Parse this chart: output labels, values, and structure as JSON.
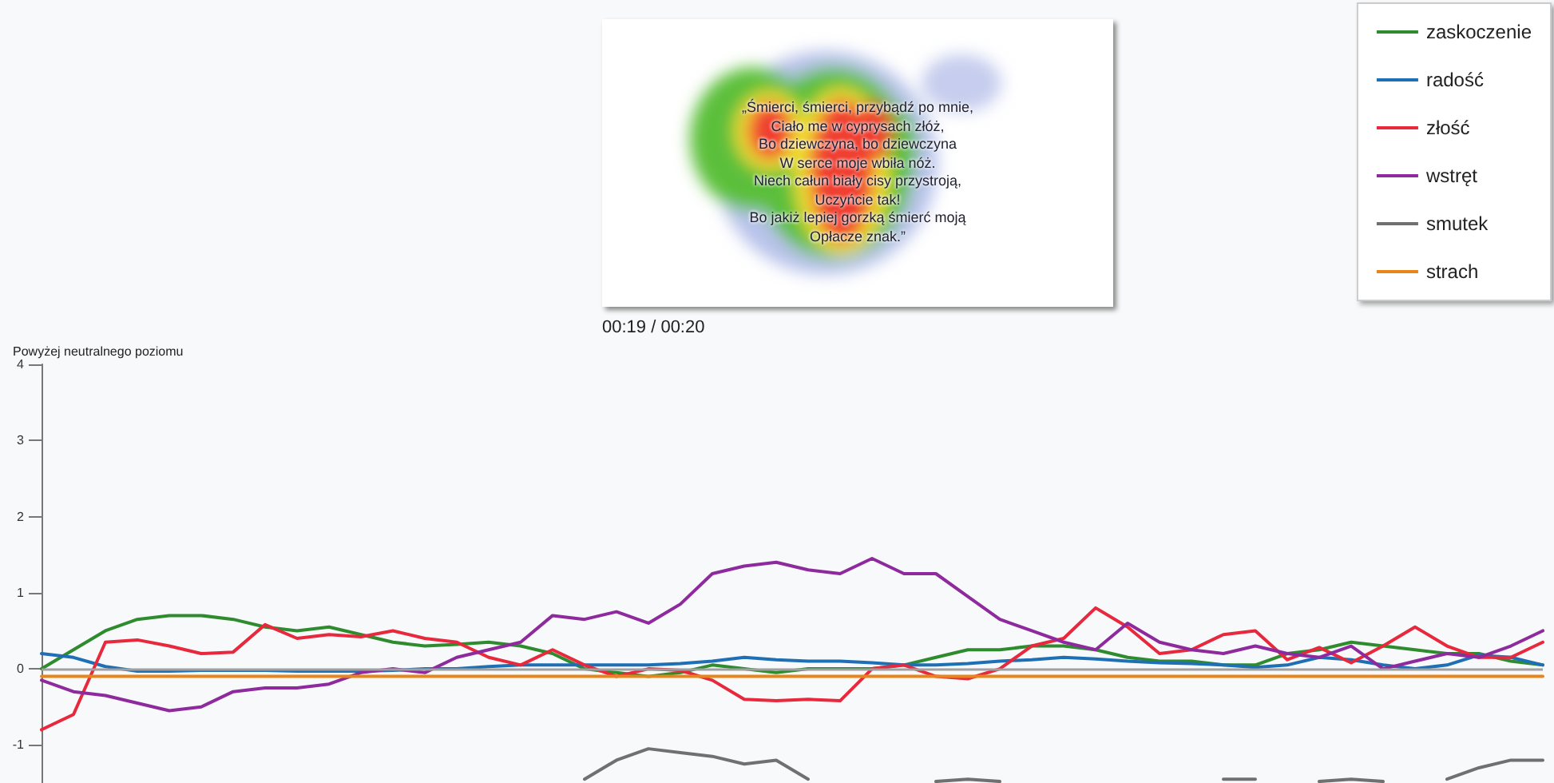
{
  "chart_data": {
    "type": "line",
    "ylabel": "Powyżej neutralnego poziomu",
    "annotations": [
      "„Śmierci, śmierci, przybądź po mnie,",
      "Ciało me w cyprysach złóż,",
      "Bo dziewczyna, bo dziewczyna",
      "W serce moje wbiła nóż.",
      "Niech całun biały cisy przystroją,",
      "Uczyńcie tak!",
      "Bo jakiż lepiej gorzką śmierć moją",
      "Opłacze znak.”",
      "00:19 / 00:20"
    ],
    "categories": [
      null,
      null,
      null,
      null,
      null,
      null,
      null,
      null,
      null,
      null,
      null,
      null,
      null,
      null,
      null,
      null,
      null,
      null,
      null,
      null,
      null,
      null,
      null,
      null,
      null,
      null,
      null,
      null,
      null,
      null,
      null,
      null,
      null,
      null,
      null,
      null,
      null,
      null,
      null,
      null,
      null,
      null,
      null,
      null,
      null,
      null,
      null,
      null
    ],
    "series": [
      {
        "name": "zaskoczenie",
        "color": "#2e8b2e",
        "values": [
          0,
          0.25,
          0.5,
          0.65,
          0.7,
          0.7,
          0.65,
          0.55,
          0.5,
          0.55,
          0.45,
          0.35,
          0.3,
          0.32,
          0.35,
          0.3,
          0.2,
          0,
          -0.05,
          -0.1,
          -0.05,
          0.05,
          0,
          -0.05,
          0,
          0,
          0,
          0.05,
          0.15,
          0.25,
          0.25,
          0.3,
          0.3,
          0.25,
          0.15,
          0.1,
          0.1,
          0.05,
          0.05,
          0.2,
          0.25,
          0.35,
          0.3,
          0.25,
          0.2,
          0.2,
          0.1,
          0.05
        ]
      },
      {
        "name": "radość",
        "color": "#1f6fb5",
        "values": [
          0.2,
          0.15,
          0.03,
          -0.03,
          -0.03,
          -0.02,
          -0.02,
          -0.02,
          -0.03,
          -0.03,
          -0.03,
          -0.02,
          0,
          0,
          0.03,
          0.05,
          0.05,
          0.05,
          0.05,
          0.05,
          0.07,
          0.1,
          0.15,
          0.12,
          0.1,
          0.1,
          0.08,
          0.05,
          0.05,
          0.07,
          0.1,
          0.12,
          0.15,
          0.13,
          0.1,
          0.08,
          0.07,
          0.05,
          0.02,
          0.05,
          0.15,
          0.12,
          0.05,
          0,
          0.05,
          0.18,
          0.15,
          0.05
        ]
      },
      {
        "name": "złość",
        "color": "#e8283c",
        "values": [
          -0.8,
          -0.6,
          0.35,
          0.38,
          0.3,
          0.2,
          0.22,
          0.58,
          0.4,
          0.45,
          0.42,
          0.5,
          0.4,
          0.35,
          0.15,
          0.05,
          0.25,
          0.05,
          -0.1,
          0,
          -0.02,
          -0.15,
          -0.4,
          -0.42,
          -0.4,
          -0.42,
          0,
          0.05,
          -0.1,
          -0.13,
          0,
          0.3,
          0.4,
          0.8,
          0.55,
          0.2,
          0.25,
          0.45,
          0.5,
          0.12,
          0.28,
          0.08,
          0.3,
          0.55,
          0.3,
          0.15,
          0.15,
          0.35
        ]
      },
      {
        "name": "wstręt",
        "color": "#8e2a9e",
        "values": [
          -0.15,
          -0.3,
          -0.35,
          -0.45,
          -0.55,
          -0.5,
          -0.3,
          -0.25,
          -0.25,
          -0.2,
          -0.05,
          0,
          -0.05,
          0.15,
          0.25,
          0.35,
          0.7,
          0.65,
          0.75,
          0.6,
          0.85,
          1.25,
          1.35,
          1.4,
          1.3,
          1.25,
          1.45,
          1.25,
          1.25,
          0.95,
          0.65,
          0.5,
          0.35,
          0.25,
          0.6,
          0.35,
          0.25,
          0.2,
          0.3,
          0.2,
          0.15,
          0.3,
          0,
          0.1,
          0.2,
          0.15,
          0.3,
          0.5
        ]
      },
      {
        "name": "smutek",
        "color": "#707070",
        "values": [
          null,
          null,
          null,
          null,
          null,
          null,
          null,
          null,
          null,
          null,
          null,
          null,
          null,
          null,
          null,
          null,
          null,
          -1.45,
          -1.2,
          -1.05,
          -1.1,
          -1.15,
          -1.25,
          -1.2,
          -1.45,
          null,
          null,
          null,
          -1.48,
          -1.45,
          -1.48,
          null,
          null,
          null,
          null,
          null,
          null,
          -1.45,
          -1.45,
          null,
          -1.48,
          -1.45,
          -1.48,
          null,
          -1.45,
          -1.3,
          -1.2,
          -1.2
        ]
      },
      {
        "name": "strach",
        "color": "#e8851a",
        "values": [
          -0.1,
          -0.1,
          -0.1,
          -0.1,
          -0.1,
          -0.1,
          -0.1,
          -0.1,
          -0.1,
          -0.1,
          -0.1,
          -0.1,
          -0.1,
          -0.1,
          -0.1,
          -0.1,
          -0.1,
          -0.1,
          -0.1,
          -0.1,
          -0.1,
          -0.1,
          -0.1,
          -0.1,
          -0.1,
          -0.1,
          -0.1,
          -0.1,
          -0.1,
          -0.1,
          -0.1,
          -0.1,
          -0.1,
          -0.1,
          -0.1,
          -0.1,
          -0.1,
          -0.1,
          -0.1,
          -0.1,
          -0.1,
          -0.1,
          -0.1,
          -0.1,
          -0.1,
          -0.1,
          -0.1,
          -0.1
        ]
      }
    ],
    "ylim": [
      -1.5,
      4
    ],
    "yticks": [
      -1,
      0,
      1,
      2,
      3,
      4
    ],
    "ref_lines": [
      {
        "axis": "y",
        "value": 0,
        "color": "#a0a0a0"
      }
    ],
    "legend": "top right",
    "marker": "none",
    "line_style": "solid",
    "tick_labels": "y",
    "grid": false
  }
}
